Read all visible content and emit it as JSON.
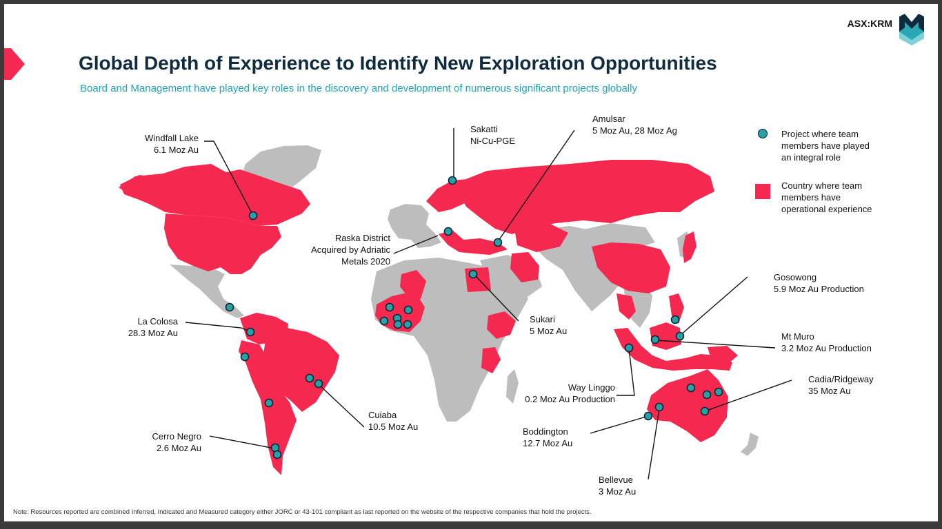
{
  "header": {
    "ticker": "ASX:KRM",
    "title": "Global Depth of Experience to Identify New Exploration Opportunities",
    "subtitle": "Board and Management have played key roles in the discovery and development of numerous significant projects globally"
  },
  "colors": {
    "accent": "#f5284f",
    "land_neutral": "#bdbdbd",
    "project_marker": "#2a9fa8",
    "title": "#0f2b3d",
    "subtitle": "#20a6b4",
    "logo_teal": "#2aa6b5",
    "logo_dark": "#0f2b3d"
  },
  "legend": {
    "project": {
      "icon": "teal-circle-marker",
      "lines": [
        "Project where team",
        "members have played",
        "an integral role"
      ]
    },
    "country": {
      "icon": "red-square",
      "lines": [
        "Country where team",
        "members have",
        "operational experience"
      ]
    }
  },
  "projects": {
    "windfall": {
      "lines": [
        "Windfall Lake",
        "6.1 Moz Au"
      ]
    },
    "sakatti": {
      "lines": [
        "Sakatti",
        "Ni-Cu-PGE"
      ]
    },
    "amulsar": {
      "lines": [
        "Amulsar",
        "5 Moz Au, 28 Moz Ag"
      ]
    },
    "raska": {
      "lines": [
        "Raska District",
        "Acquired by Adriatic",
        "Metals 2020"
      ]
    },
    "lacolosa": {
      "lines": [
        "La Colosa",
        "28.3 Moz Au"
      ]
    },
    "sukari": {
      "lines": [
        "Sukari",
        "5 Moz Au"
      ]
    },
    "gosowong": {
      "lines": [
        "Gosowong",
        "5.9 Moz Au Production"
      ]
    },
    "mtmuro": {
      "lines": [
        "Mt Muro",
        "3.2 Moz Au Production"
      ]
    },
    "waylinggo": {
      "lines": [
        "Way Linggo",
        "0.2 Moz Au Production"
      ]
    },
    "cadia": {
      "lines": [
        "Cadia/Ridgeway",
        "35 Moz Au"
      ]
    },
    "cuiaba": {
      "lines": [
        "Cuiaba",
        "10.5 Moz Au"
      ]
    },
    "cerronegro": {
      "lines": [
        "Cerro Negro",
        "2.6 Moz Au"
      ]
    },
    "boddington": {
      "lines": [
        "Boddington",
        "12.7 Moz Au"
      ]
    },
    "bellevue": {
      "lines": [
        "Bellevue",
        "3 Moz Au"
      ]
    }
  },
  "footer": {
    "note": "Note: Resources reported are combined Inferred, Indicated and Measured category either JORC or 43-101 compliant as last reported on the website of the respective companies that hold the projects."
  }
}
